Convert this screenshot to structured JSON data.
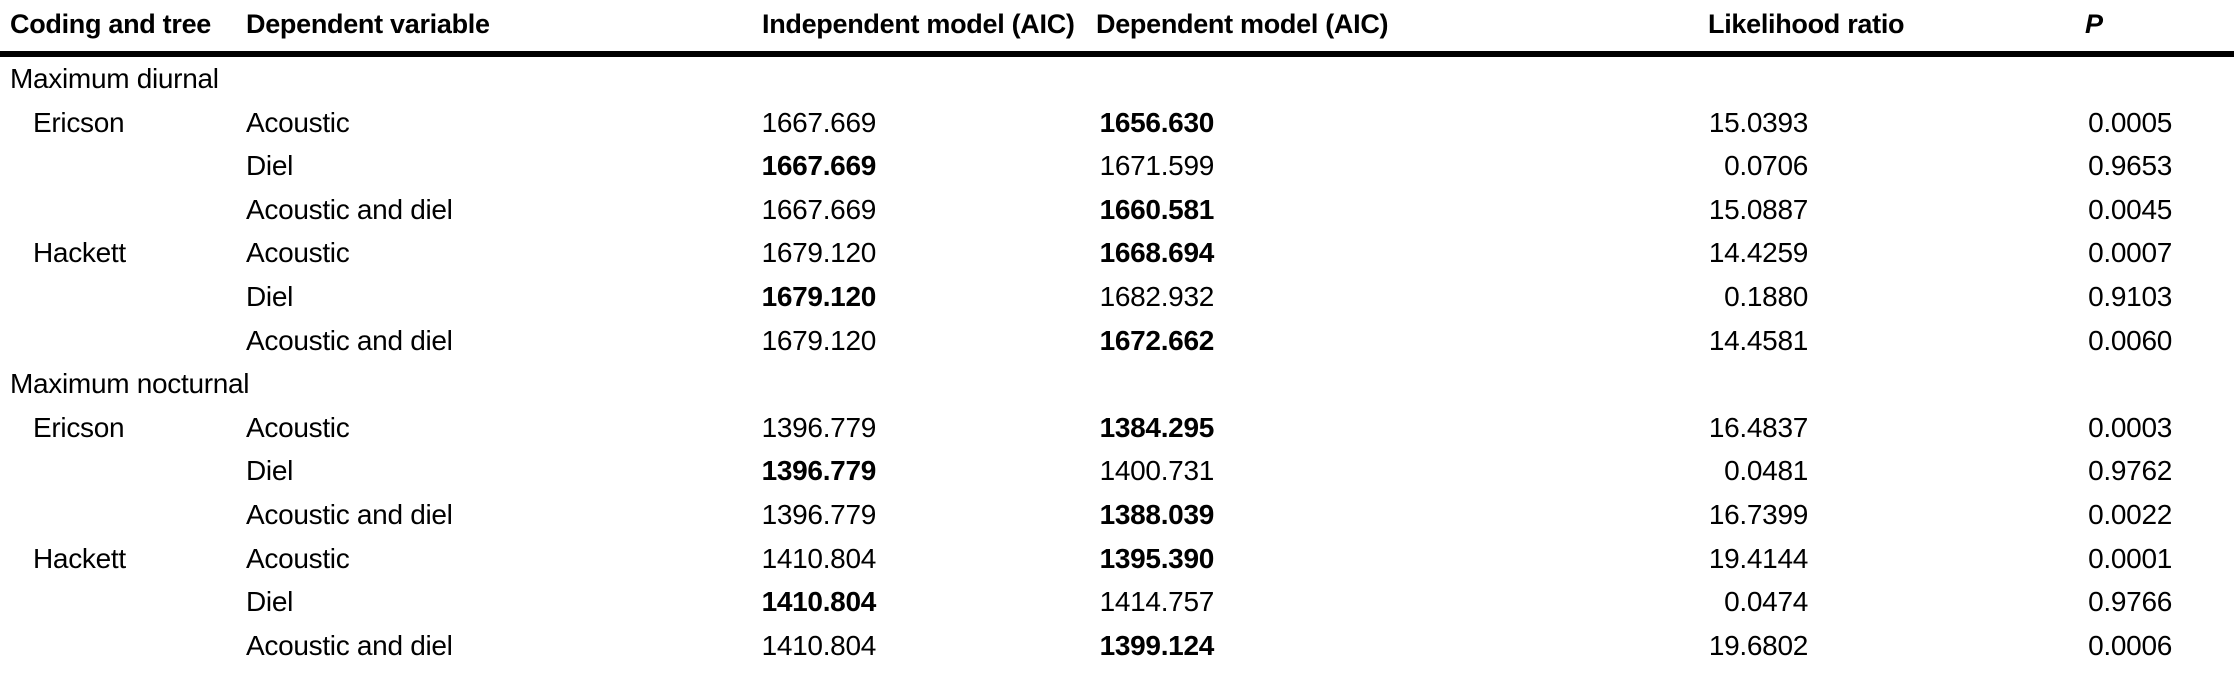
{
  "table": {
    "columns": [
      "Coding and tree",
      "Dependent variable",
      "Independent model (AIC)",
      "Dependent model (AIC)",
      "Likelihood ratio",
      "P"
    ],
    "text_color": "#000000",
    "rule_color": "#000000",
    "rows": [
      {
        "type": "section",
        "label": "Maximum diurnal"
      },
      {
        "type": "data",
        "tree": "Ericson",
        "variable": "Acoustic",
        "independent_aic": "1667.669",
        "independent_bold": false,
        "dependent_aic": "1656.630",
        "dependent_bold": true,
        "likelihood_ratio": "15.0393",
        "p": "0.0005"
      },
      {
        "type": "data",
        "tree": "",
        "variable": "Diel",
        "independent_aic": "1667.669",
        "independent_bold": true,
        "dependent_aic": "1671.599",
        "dependent_bold": false,
        "likelihood_ratio": "0.0706",
        "p": "0.9653"
      },
      {
        "type": "data",
        "tree": "",
        "variable": "Acoustic and diel",
        "independent_aic": "1667.669",
        "independent_bold": false,
        "dependent_aic": "1660.581",
        "dependent_bold": true,
        "likelihood_ratio": "15.0887",
        "p": "0.0045"
      },
      {
        "type": "data",
        "tree": "Hackett",
        "variable": "Acoustic",
        "independent_aic": "1679.120",
        "independent_bold": false,
        "dependent_aic": "1668.694",
        "dependent_bold": true,
        "likelihood_ratio": "14.4259",
        "p": "0.0007"
      },
      {
        "type": "data",
        "tree": "",
        "variable": "Diel",
        "independent_aic": "1679.120",
        "independent_bold": true,
        "dependent_aic": "1682.932",
        "dependent_bold": false,
        "likelihood_ratio": "0.1880",
        "p": "0.9103"
      },
      {
        "type": "data",
        "tree": "",
        "variable": "Acoustic and diel",
        "independent_aic": "1679.120",
        "independent_bold": false,
        "dependent_aic": "1672.662",
        "dependent_bold": true,
        "likelihood_ratio": "14.4581",
        "p": "0.0060"
      },
      {
        "type": "section",
        "label": "Maximum nocturnal"
      },
      {
        "type": "data",
        "tree": "Ericson",
        "variable": "Acoustic",
        "independent_aic": "1396.779",
        "independent_bold": false,
        "dependent_aic": "1384.295",
        "dependent_bold": true,
        "likelihood_ratio": "16.4837",
        "p": "0.0003"
      },
      {
        "type": "data",
        "tree": "",
        "variable": "Diel",
        "independent_aic": "1396.779",
        "independent_bold": true,
        "dependent_aic": "1400.731",
        "dependent_bold": false,
        "likelihood_ratio": "0.0481",
        "p": "0.9762"
      },
      {
        "type": "data",
        "tree": "",
        "variable": "Acoustic and diel",
        "independent_aic": "1396.779",
        "independent_bold": false,
        "dependent_aic": "1388.039",
        "dependent_bold": true,
        "likelihood_ratio": "16.7399",
        "p": "0.0022"
      },
      {
        "type": "data",
        "tree": "Hackett",
        "variable": "Acoustic",
        "independent_aic": "1410.804",
        "independent_bold": false,
        "dependent_aic": "1395.390",
        "dependent_bold": true,
        "likelihood_ratio": "19.4144",
        "p": "0.0001"
      },
      {
        "type": "data",
        "tree": "",
        "variable": "Diel",
        "independent_aic": "1410.804",
        "independent_bold": true,
        "dependent_aic": "1414.757",
        "dependent_bold": false,
        "likelihood_ratio": "0.0474",
        "p": "0.9766"
      },
      {
        "type": "data",
        "tree": "",
        "variable": "Acoustic and diel",
        "independent_aic": "1410.804",
        "independent_bold": false,
        "dependent_aic": "1399.124",
        "dependent_bold": true,
        "likelihood_ratio": "19.6802",
        "p": "0.0006"
      }
    ]
  }
}
